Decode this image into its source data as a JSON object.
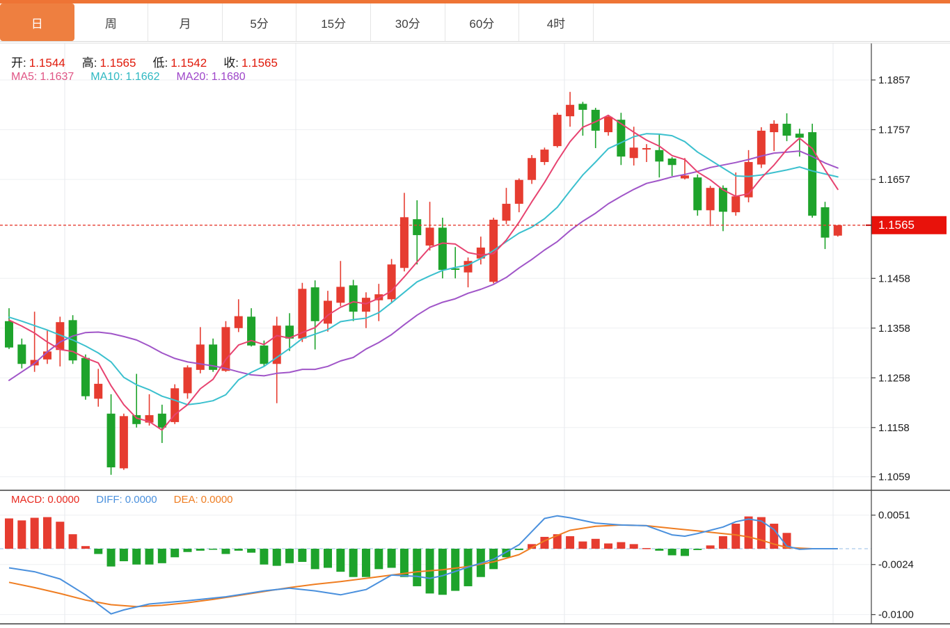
{
  "tabs": {
    "items": [
      {
        "id": "day",
        "label": "日",
        "active": true
      },
      {
        "id": "week",
        "label": "周",
        "active": false
      },
      {
        "id": "month",
        "label": "月",
        "active": false
      },
      {
        "id": "5min",
        "label": "5分",
        "active": false
      },
      {
        "id": "15min",
        "label": "15分",
        "active": false
      },
      {
        "id": "30min",
        "label": "30分",
        "active": false
      },
      {
        "id": "60min",
        "label": "60分",
        "active": false
      },
      {
        "id": "4hour",
        "label": "4时",
        "active": false
      }
    ]
  },
  "ohlc_legend": {
    "label_color": "#1a1a1a",
    "value_color": "#e0190a",
    "items": [
      {
        "name": "open",
        "label": "开:",
        "value": "1.1544"
      },
      {
        "name": "high",
        "label": "高:",
        "value": "1.1565"
      },
      {
        "name": "low",
        "label": "低:",
        "value": "1.1542"
      },
      {
        "name": "close",
        "label": "收:",
        "value": "1.1565"
      }
    ]
  },
  "ma_legend": {
    "items": [
      {
        "name": "ma5",
        "label": "MA5:",
        "value": "1.1637",
        "color": "#e05585"
      },
      {
        "name": "ma10",
        "label": "MA10:",
        "value": "1.1662",
        "color": "#2eb8c2"
      },
      {
        "name": "ma20",
        "label": "MA20:",
        "value": "1.1680",
        "color": "#9e45c9"
      }
    ]
  },
  "macd_legend": {
    "items": [
      {
        "name": "macd",
        "label": "MACD:",
        "value": "0.0000",
        "color": "#e8281e"
      },
      {
        "name": "diff",
        "label": "DIFF:",
        "value": "0.0000",
        "color": "#4a90dd"
      },
      {
        "name": "dea",
        "label": "DEA:",
        "value": "0.0000",
        "color": "#ef7d21"
      }
    ]
  },
  "colors": {
    "accent": "#ee7f40",
    "top_strip": "#ee7435",
    "up": "#e63c30",
    "down": "#1ea32b",
    "ma5": "#e74370",
    "ma10": "#3bc0ce",
    "ma20": "#a055c8",
    "diff": "#4a90dd",
    "dea": "#ef7d21",
    "grid": "#edeff2",
    "vgrid": "#e7eaee",
    "axis": "#3f3f3f",
    "tick_text": "#1a1a1a",
    "dotted_line": "#e63c30",
    "marker_bg": "#e8120b",
    "marker_text": "#ffffff",
    "macd_zero_dash": "#b9d3ee"
  },
  "chart_data": {
    "type": "candlestick",
    "title": "",
    "xlabel": "",
    "ylabel": "",
    "price_ticks": [
      {
        "label": "1.1857",
        "value": 1.1857
      },
      {
        "label": "1.1757",
        "value": 1.1757
      },
      {
        "label": "1.1657",
        "value": 1.1657
      },
      {
        "label": "1.1458",
        "value": 1.1458
      },
      {
        "label": "1.1358",
        "value": 1.1358
      },
      {
        "label": "1.1258",
        "value": 1.1258
      },
      {
        "label": "1.1158",
        "value": 1.1158
      },
      {
        "label": "1.1059",
        "value": 1.1059
      }
    ],
    "current_price": {
      "label": "1.1565",
      "value": 1.1565
    },
    "candles": [
      [
        1.1372,
        1.1398,
        1.1316,
        1.1319
      ],
      [
        1.1325,
        1.1337,
        1.1277,
        1.1286
      ],
      [
        1.1283,
        1.1391,
        1.127,
        1.1294
      ],
      [
        1.1295,
        1.1353,
        1.1286,
        1.1311
      ],
      [
        1.1314,
        1.1381,
        1.1281,
        1.137
      ],
      [
        1.1374,
        1.1384,
        1.1286,
        1.1293
      ],
      [
        1.1298,
        1.1305,
        1.1214,
        1.1221
      ],
      [
        1.1216,
        1.1276,
        1.12,
        1.1246
      ],
      [
        1.1186,
        1.1225,
        1.1063,
        1.1078
      ],
      [
        1.1076,
        1.1186,
        1.1073,
        1.1181
      ],
      [
        1.1183,
        1.1266,
        1.1158,
        1.1165
      ],
      [
        1.1168,
        1.1225,
        1.1162,
        1.1183
      ],
      [
        1.1186,
        1.1204,
        1.1127,
        1.1158
      ],
      [
        1.1169,
        1.1245,
        1.1165,
        1.1237
      ],
      [
        1.1227,
        1.1283,
        1.1216,
        1.1279
      ],
      [
        1.1274,
        1.136,
        1.1267,
        1.1325
      ],
      [
        1.1325,
        1.1337,
        1.127,
        1.1274
      ],
      [
        1.1272,
        1.1372,
        1.127,
        1.136
      ],
      [
        1.1358,
        1.1416,
        1.135,
        1.1382
      ],
      [
        1.1381,
        1.1398,
        1.1321,
        1.1323
      ],
      [
        1.1323,
        1.1333,
        1.1281,
        1.1286
      ],
      [
        1.1286,
        1.1381,
        1.1207,
        1.1363
      ],
      [
        1.1363,
        1.1388,
        1.1312,
        1.1337
      ],
      [
        1.1337,
        1.1449,
        1.133,
        1.1437
      ],
      [
        1.144,
        1.1454,
        1.1315,
        1.1372
      ],
      [
        1.1367,
        1.1433,
        1.1351,
        1.1413
      ],
      [
        1.1409,
        1.1493,
        1.1402,
        1.1441
      ],
      [
        1.1444,
        1.1455,
        1.1372,
        1.1391
      ],
      [
        1.1391,
        1.143,
        1.1358,
        1.1419
      ],
      [
        1.1414,
        1.1447,
        1.1372,
        1.1426
      ],
      [
        1.1416,
        1.1497,
        1.1409,
        1.1486
      ],
      [
        1.1479,
        1.163,
        1.1472,
        1.1581
      ],
      [
        1.1577,
        1.1615,
        1.1486,
        1.1545
      ],
      [
        1.1524,
        1.1612,
        1.1514,
        1.156
      ],
      [
        1.156,
        1.158,
        1.1458,
        1.1475
      ],
      [
        1.1478,
        1.1521,
        1.1458,
        1.1476
      ],
      [
        1.147,
        1.15,
        1.144,
        1.1493
      ],
      [
        1.1498,
        1.1542,
        1.1486,
        1.152
      ],
      [
        1.1451,
        1.158,
        1.1448,
        1.1576
      ],
      [
        1.1574,
        1.164,
        1.1567,
        1.1608
      ],
      [
        1.1608,
        1.1659,
        1.1591,
        1.1656
      ],
      [
        1.1656,
        1.1706,
        1.1648,
        1.17
      ],
      [
        1.1692,
        1.1721,
        1.1686,
        1.1717
      ],
      [
        1.1724,
        1.1791,
        1.1721,
        1.1787
      ],
      [
        1.1784,
        1.1833,
        1.1763,
        1.1807
      ],
      [
        1.1809,
        1.1813,
        1.1745,
        1.1797
      ],
      [
        1.1797,
        1.1801,
        1.172,
        1.1755
      ],
      [
        1.1752,
        1.1787,
        1.1745,
        1.1783
      ],
      [
        1.1777,
        1.1791,
        1.1686,
        1.1703
      ],
      [
        1.17,
        1.1763,
        1.1685,
        1.1721
      ],
      [
        1.1719,
        1.1728,
        1.1692,
        1.172
      ],
      [
        1.1716,
        1.1749,
        1.1661,
        1.1693
      ],
      [
        1.1699,
        1.1702,
        1.1664,
        1.1686
      ],
      [
        1.1659,
        1.17,
        1.1657,
        1.1665
      ],
      [
        1.1661,
        1.1667,
        1.1584,
        1.1595
      ],
      [
        1.1595,
        1.1644,
        1.1563,
        1.164
      ],
      [
        1.164,
        1.1645,
        1.1553,
        1.1592
      ],
      [
        1.1591,
        1.1671,
        1.1584,
        1.1623
      ],
      [
        1.1621,
        1.1716,
        1.1611,
        1.1692
      ],
      [
        1.1687,
        1.1762,
        1.168,
        1.1755
      ],
      [
        1.1752,
        1.1776,
        1.1714,
        1.1769
      ],
      [
        1.1769,
        1.179,
        1.1734,
        1.1745
      ],
      [
        1.1749,
        1.1759,
        1.1703,
        1.1741
      ],
      [
        1.1752,
        1.1769,
        1.158,
        1.1584
      ],
      [
        1.1601,
        1.1612,
        1.1517,
        1.154
      ],
      [
        1.1544,
        1.1565,
        1.1542,
        1.1565
      ]
    ],
    "ma5": [
      1.1374,
      1.1362,
      1.1348,
      1.133,
      1.1315,
      1.1311,
      1.1298,
      1.1288,
      1.1242,
      1.1204,
      1.1177,
      1.117,
      1.1153,
      1.1184,
      1.1204,
      1.1236,
      1.1255,
      1.1295,
      1.1324,
      1.1333,
      1.1325,
      1.1343,
      1.1338,
      1.1349,
      1.1359,
      1.1384,
      1.14,
      1.1411,
      1.1407,
      1.1418,
      1.1433,
      1.1461,
      1.1491,
      1.152,
      1.1529,
      1.1527,
      1.151,
      1.1505,
      1.1508,
      1.1535,
      1.1571,
      1.1612,
      1.1651,
      1.1694,
      1.1733,
      1.1762,
      1.1773,
      1.1786,
      1.1769,
      1.1752,
      1.1736,
      1.1724,
      1.1705,
      1.1697,
      1.1672,
      1.1656,
      1.1636,
      1.1623,
      1.1628,
      1.166,
      1.1686,
      1.1717,
      1.174,
      1.1719,
      1.1676,
      1.1637
    ],
    "ma10": [
      1.138,
      1.1372,
      1.1363,
      1.1354,
      1.1344,
      1.1334,
      1.1322,
      1.1308,
      1.129,
      1.1259,
      1.1244,
      1.1234,
      1.1221,
      1.1213,
      1.1204,
      1.1207,
      1.1212,
      1.1224,
      1.1254,
      1.1269,
      1.1281,
      1.1299,
      1.1317,
      1.1337,
      1.1346,
      1.1355,
      1.1371,
      1.1375,
      1.1378,
      1.1389,
      1.1409,
      1.143,
      1.1451,
      1.1463,
      1.1474,
      1.148,
      1.1485,
      1.1498,
      1.1514,
      1.1532,
      1.1549,
      1.1561,
      1.1578,
      1.1601,
      1.1634,
      1.1666,
      1.1692,
      1.1719,
      1.1731,
      1.1743,
      1.1749,
      1.1748,
      1.1745,
      1.1733,
      1.1712,
      1.1696,
      1.168,
      1.1664,
      1.1663,
      1.1666,
      1.1671,
      1.1676,
      1.1682,
      1.1674,
      1.1668,
      1.1662
    ],
    "ma20": [
      1.1253,
      1.127,
      1.1287,
      1.131,
      1.133,
      1.1342,
      1.1349,
      1.135,
      1.1347,
      1.1341,
      1.1334,
      1.1322,
      1.1308,
      1.1297,
      1.129,
      1.1286,
      1.1282,
      1.1277,
      1.127,
      1.1264,
      1.1262,
      1.1267,
      1.1269,
      1.1275,
      1.1275,
      1.1281,
      1.1292,
      1.1299,
      1.1316,
      1.1329,
      1.1345,
      1.1365,
      1.1384,
      1.14,
      1.141,
      1.1417,
      1.1428,
      1.1436,
      1.1446,
      1.146,
      1.1479,
      1.1496,
      1.1515,
      1.1532,
      1.1554,
      1.1573,
      1.1589,
      1.1608,
      1.1623,
      1.1637,
      1.1649,
      1.1655,
      1.1662,
      1.1667,
      1.1673,
      1.1681,
      1.1686,
      1.1691,
      1.1697,
      1.1704,
      1.171,
      1.1712,
      1.1714,
      1.1703,
      1.169,
      1.168
    ],
    "macd": {
      "ticks": [
        {
          "label": "0.0051",
          "value": 0.0051
        },
        {
          "label": "-0.0024",
          "value": -0.0024
        },
        {
          "label": "-0.0100",
          "value": -0.01
        }
      ],
      "bars": [
        0.0046,
        0.0043,
        0.0047,
        0.0048,
        0.0041,
        0.0022,
        0.0004,
        -0.0008,
        -0.0027,
        -0.0019,
        -0.0024,
        -0.0024,
        -0.0022,
        -0.0013,
        -0.0005,
        -0.0003,
        -0.0001,
        -0.0008,
        -0.0003,
        -0.0006,
        -0.0024,
        -0.0026,
        -0.0022,
        -0.002,
        -0.0031,
        -0.0029,
        -0.0035,
        -0.0043,
        -0.0043,
        -0.0031,
        -0.0029,
        -0.0043,
        -0.0057,
        -0.0068,
        -0.007,
        -0.0064,
        -0.0057,
        -0.0043,
        -0.0031,
        -0.0013,
        -0.0002,
        0.0007,
        0.0018,
        0.0022,
        0.0019,
        0.0011,
        0.0015,
        0.0008,
        0.001,
        0.0007,
        0.0001,
        -0.0003,
        -0.001,
        -0.0011,
        -0.0002,
        0.0005,
        0.0019,
        0.0038,
        0.0049,
        0.0048,
        0.0038,
        0.0024,
        0.0001,
        0,
        0,
        0
      ],
      "diff_points": [
        [
          0,
          -0.0029
        ],
        [
          2,
          -0.0035
        ],
        [
          4,
          -0.0046
        ],
        [
          6,
          -0.007
        ],
        [
          8,
          -0.0099
        ],
        [
          9,
          -0.0093
        ],
        [
          11,
          -0.0084
        ],
        [
          14,
          -0.0079
        ],
        [
          17,
          -0.0073
        ],
        [
          20,
          -0.0064
        ],
        [
          22,
          -0.006
        ],
        [
          24,
          -0.0064
        ],
        [
          26,
          -0.007
        ],
        [
          28,
          -0.0062
        ],
        [
          30,
          -0.004
        ],
        [
          32,
          -0.0042
        ],
        [
          33,
          -0.0045
        ],
        [
          34,
          -0.0041
        ],
        [
          36,
          -0.0028
        ],
        [
          38,
          -0.0016
        ],
        [
          40,
          0.0006
        ],
        [
          42,
          0.0046
        ],
        [
          43,
          0.005
        ],
        [
          44,
          0.0047
        ],
        [
          46,
          0.0039
        ],
        [
          48,
          0.0036
        ],
        [
          50,
          0.0035
        ],
        [
          52,
          0.0021
        ],
        [
          53,
          0.0019
        ],
        [
          54,
          0.0023
        ],
        [
          56,
          0.0033
        ],
        [
          57,
          0.0041
        ],
        [
          58,
          0.0045
        ],
        [
          59,
          0.0042
        ],
        [
          60,
          0.0029
        ],
        [
          61,
          0.0004
        ],
        [
          62,
          -0.0001
        ],
        [
          63,
          0
        ],
        [
          65,
          0
        ]
      ],
      "dea_points": [
        [
          0,
          -0.0051
        ],
        [
          2,
          -0.0059
        ],
        [
          4,
          -0.0068
        ],
        [
          6,
          -0.0078
        ],
        [
          8,
          -0.0085
        ],
        [
          10,
          -0.0088
        ],
        [
          12,
          -0.0086
        ],
        [
          14,
          -0.0082
        ],
        [
          16,
          -0.0077
        ],
        [
          18,
          -0.0071
        ],
        [
          20,
          -0.0065
        ],
        [
          22,
          -0.0059
        ],
        [
          24,
          -0.0054
        ],
        [
          26,
          -0.005
        ],
        [
          28,
          -0.0045
        ],
        [
          30,
          -0.004
        ],
        [
          32,
          -0.0035
        ],
        [
          34,
          -0.0032
        ],
        [
          36,
          -0.0027
        ],
        [
          38,
          -0.002
        ],
        [
          40,
          -0.0009
        ],
        [
          42,
          0.0012
        ],
        [
          44,
          0.0028
        ],
        [
          46,
          0.0034
        ],
        [
          48,
          0.0036
        ],
        [
          50,
          0.0035
        ],
        [
          52,
          0.0031
        ],
        [
          54,
          0.0027
        ],
        [
          56,
          0.0023
        ],
        [
          57,
          0.0021
        ],
        [
          58,
          0.0018
        ],
        [
          59,
          0.0013
        ],
        [
          60,
          0.0007
        ],
        [
          61,
          0.0002
        ],
        [
          62,
          0.0001
        ],
        [
          63,
          0
        ],
        [
          65,
          0
        ]
      ]
    }
  }
}
